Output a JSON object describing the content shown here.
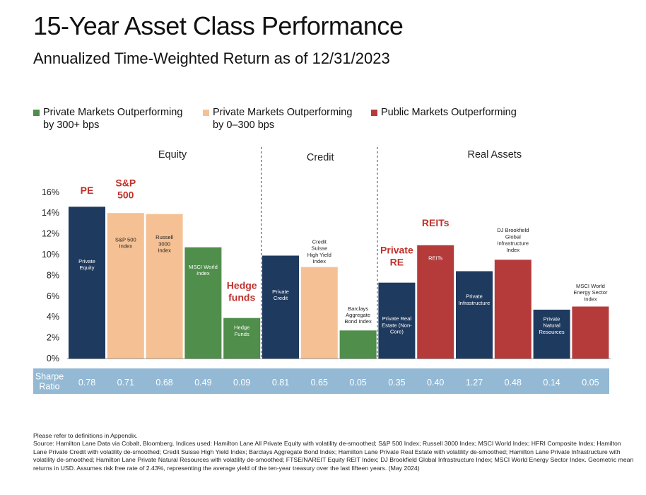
{
  "title": "15-Year Asset Class Performance",
  "subtitle": "Annualized Time-Weighted Return as of 12/31/2023",
  "legend": [
    {
      "label": "Private Markets Outperforming\nby 300+ bps",
      "color": "#4f8e4b"
    },
    {
      "label": "Private Markets Outperforming\nby 0–300 bps",
      "color": "#f5c194"
    },
    {
      "label": "Public Markets Outperforming",
      "color": "#b53a3a"
    }
  ],
  "chart_data": {
    "type": "bar",
    "ylim": [
      0,
      16
    ],
    "y_ticks": [
      "0%",
      "2%",
      "4%",
      "6%",
      "8%",
      "10%",
      "12%",
      "14%",
      "16%"
    ],
    "groups": [
      {
        "label": "Equity",
        "span": [
          0,
          4
        ]
      },
      {
        "label": "Credit",
        "span": [
          5,
          7
        ]
      },
      {
        "label": "Real Assets",
        "span": [
          8,
          13
        ]
      }
    ],
    "colors": {
      "private": "#1f3a5f",
      "green": "#4f8e4b",
      "peach": "#f5c194",
      "red": "#b53a3a"
    },
    "bars": [
      {
        "label": "Private\nEquity",
        "value": 14.6,
        "color": "private",
        "sharpe": "0.78",
        "callout": "PE"
      },
      {
        "label": "S&P 500\nIndex",
        "value": 14.0,
        "color": "peach",
        "sharpe": "0.71",
        "callout": "S&P\n500"
      },
      {
        "label": "Russell\n3000\nIndex",
        "value": 13.9,
        "color": "peach",
        "sharpe": "0.68",
        "callout": ""
      },
      {
        "label": "MSCI World\nIndex",
        "value": 10.7,
        "color": "green",
        "sharpe": "0.49",
        "callout": ""
      },
      {
        "label": "Hedge\nFunds",
        "value": 3.9,
        "color": "green",
        "sharpe": "0.09",
        "callout": "Hedge\nfunds"
      },
      {
        "label": "Private\nCredit",
        "value": 9.9,
        "color": "private",
        "sharpe": "0.81",
        "callout": ""
      },
      {
        "label": "Credit\nSuisse\nHigh Yield\nIndex",
        "value": 8.8,
        "color": "peach",
        "sharpe": "0.65",
        "callout": ""
      },
      {
        "label": "Barclays\nAggregate\nBond Index",
        "value": 2.7,
        "color": "green",
        "sharpe": "0.05",
        "callout": ""
      },
      {
        "label": "Private Real\nEstate (Non-\nCore)",
        "value": 7.3,
        "color": "private",
        "sharpe": "0.35",
        "callout": "Private\nRE"
      },
      {
        "label": "REITs",
        "value": 10.9,
        "color": "red",
        "sharpe": "0.40",
        "callout": "REITs"
      },
      {
        "label": "Private\nInfrastructure",
        "value": 8.4,
        "color": "private",
        "sharpe": "1.27",
        "callout": ""
      },
      {
        "label": "DJ Brookfield\nGlobal\nInfrastructure\nIndex",
        "value": 9.5,
        "color": "red",
        "sharpe": "0.48",
        "callout": ""
      },
      {
        "label": "Private\nNatural\nResources",
        "value": 4.7,
        "color": "private",
        "sharpe": "0.14",
        "callout": ""
      },
      {
        "label": "MSCI World\nEnergy Sector\nIndex",
        "value": 5.0,
        "color": "red",
        "sharpe": "0.05",
        "callout": ""
      }
    ],
    "sharpe_label": "Sharpe\nRatio"
  },
  "footnote": {
    "line1": "Please refer to definitions in Appendix.",
    "source": "Source: Hamilton Lane Data via Cobalt, Bloomberg. Indices used: Hamilton Lane All Private Equity with volatility de-smoothed; S&P 500 Index; Russell 3000 Index; MSCI World Index; HFRI Composite Index; Hamilton Lane Private Credit with volatility de-smoothed; Credit Suisse High Yield Index; Barclays Aggregate Bond Index; Hamilton Lane Private Real Estate with volatility de-smoothed; Hamilton Lane Private Infrastructure with volatility de-smoothed; Hamilton Lane Private Natural Resources with volatility de-smoothed; FTSE/NAREIT Equity REIT Index; DJ Brookfield Global Infrastructure Index; MSCI World Energy Sector Index. Geometric mean returns in USD. Assumes risk free rate of 2.43%, representing the average yield of the ten-year treasury over the last fifteen years. (May 2024)"
  }
}
